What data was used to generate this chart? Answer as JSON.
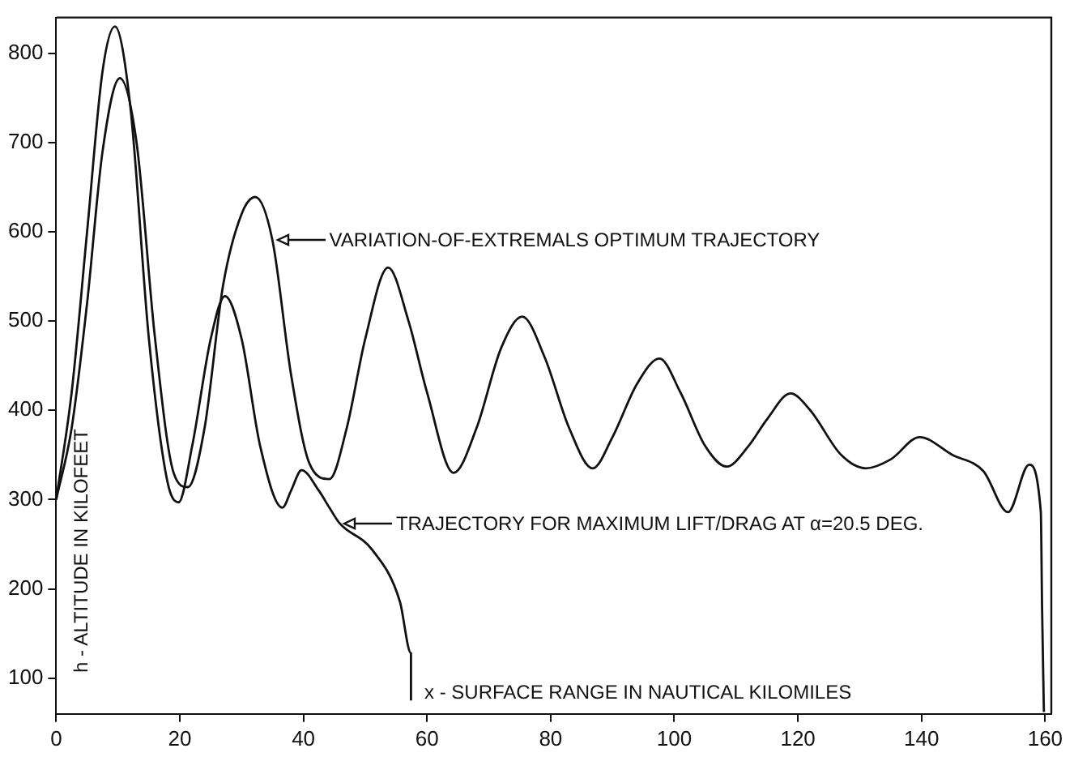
{
  "chart_data": {
    "type": "line",
    "xlabel": "x - SURFACE RANGE IN NAUTICAL KILOMILES",
    "ylabel": "h - ALTITUDE IN KILOFEET",
    "xlim": [
      0,
      161
    ],
    "xticks": [
      0,
      20,
      40,
      60,
      80,
      100,
      120,
      140,
      160
    ],
    "ylim": [
      60,
      840
    ],
    "yticks": [
      100,
      200,
      300,
      400,
      500,
      600,
      700,
      800
    ],
    "grid": false,
    "legend": "right",
    "marker": "none",
    "line_style": "solid",
    "series": [
      {
        "name": "VARIATION-OF-EXTREMALS OPTIMUM TRAJECTORY",
        "color": "#111111",
        "x": [
          0,
          2.5,
          5,
          7.5,
          10.3,
          13,
          16,
          19,
          21.3,
          24,
          27,
          30,
          32.2,
          35,
          38,
          41,
          44.2,
          47,
          50,
          53.7,
          57,
          60,
          64.3,
          68,
          72,
          75.4,
          79,
          83,
          86.8,
          90,
          94,
          97.6,
          101,
          105,
          108.5,
          112,
          115,
          118.8,
          122,
          127,
          131,
          135,
          139.7,
          145,
          150,
          154,
          157.4,
          159.3,
          159.5,
          159.8
        ],
        "values": [
          300,
          380,
          520,
          690,
          772,
          700,
          480,
          330,
          314,
          380,
          540,
          620,
          639,
          590,
          440,
          340,
          323,
          380,
          480,
          560,
          500,
          420,
          330,
          380,
          470,
          505,
          460,
          380,
          335,
          370,
          430,
          458,
          420,
          360,
          337,
          360,
          390,
          419,
          400,
          350,
          335,
          345,
          370,
          350,
          332,
          286,
          339,
          286,
          181,
          62
        ]
      },
      {
        "name": "TRAJECTORY FOR MAXIMUM LIFT/DRAG AT α=20.5 DEG.",
        "color": "#111111",
        "x": [
          0,
          2.5,
          5,
          7.5,
          9.5,
          12,
          15,
          18,
          19.8,
          22,
          25,
          27.3,
          30,
          33,
          36.6,
          38,
          39.7,
          42.5,
          44.2,
          45.8,
          51.1,
          55.6,
          57.4,
          57.4
        ],
        "values": [
          300,
          420,
          600,
          780,
          830,
          740,
          480,
          320,
          297,
          360,
          480,
          528,
          480,
          360,
          291,
          310,
          333,
          310,
          291,
          274,
          244,
          186,
          128,
          75
        ]
      }
    ]
  }
}
